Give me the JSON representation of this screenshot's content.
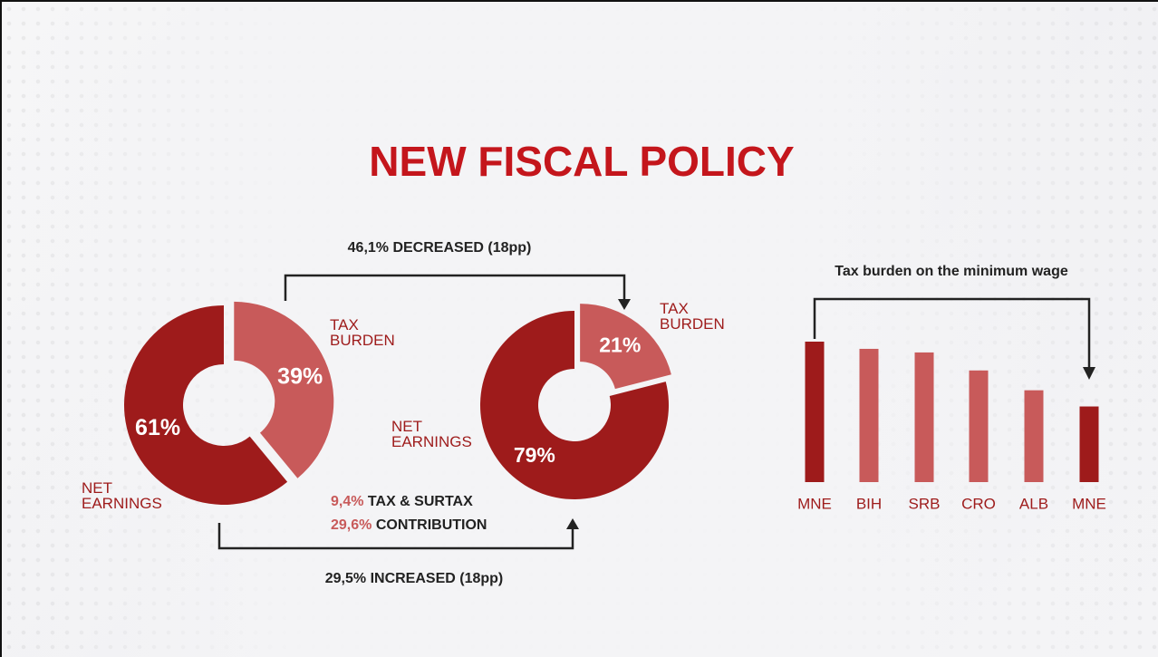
{
  "title": "NEW FISCAL POLICY",
  "annotations": {
    "decrease": "46,1% DECREASED (18pp)",
    "increase": "29,5% INCREASED (18pp)",
    "tax_value": "9,4%",
    "tax_text": "TAX & SURTAX",
    "contribution_value": "29,6%",
    "contribution_text": "CONTRIBUTION"
  },
  "chart_data": [
    {
      "type": "pie",
      "categories": [
        "TAX BURDEN",
        "NET EARNINGS"
      ],
      "values": [
        39,
        61
      ],
      "value_labels": [
        "39%",
        "61%"
      ],
      "colors": [
        "#c85a5a",
        "#9e1b1b"
      ]
    },
    {
      "type": "pie",
      "categories": [
        "TAX BURDEN",
        "NET EARNINGS"
      ],
      "values": [
        21,
        79
      ],
      "value_labels": [
        "21%",
        "79%"
      ],
      "colors": [
        "#c85a5a",
        "#9e1b1b"
      ]
    },
    {
      "type": "bar",
      "title": "Tax burden on the minimum wage",
      "categories": [
        "MNE",
        "BIH",
        "SRB",
        "CRO",
        "ALB",
        "MNE"
      ],
      "values": [
        39,
        37,
        36,
        31,
        25.5,
        21
      ],
      "colors": [
        "#9e1b1b",
        "#c85a5a",
        "#c85a5a",
        "#c85a5a",
        "#c85a5a",
        "#9e1b1b"
      ],
      "ylim": [
        0,
        39
      ]
    }
  ]
}
